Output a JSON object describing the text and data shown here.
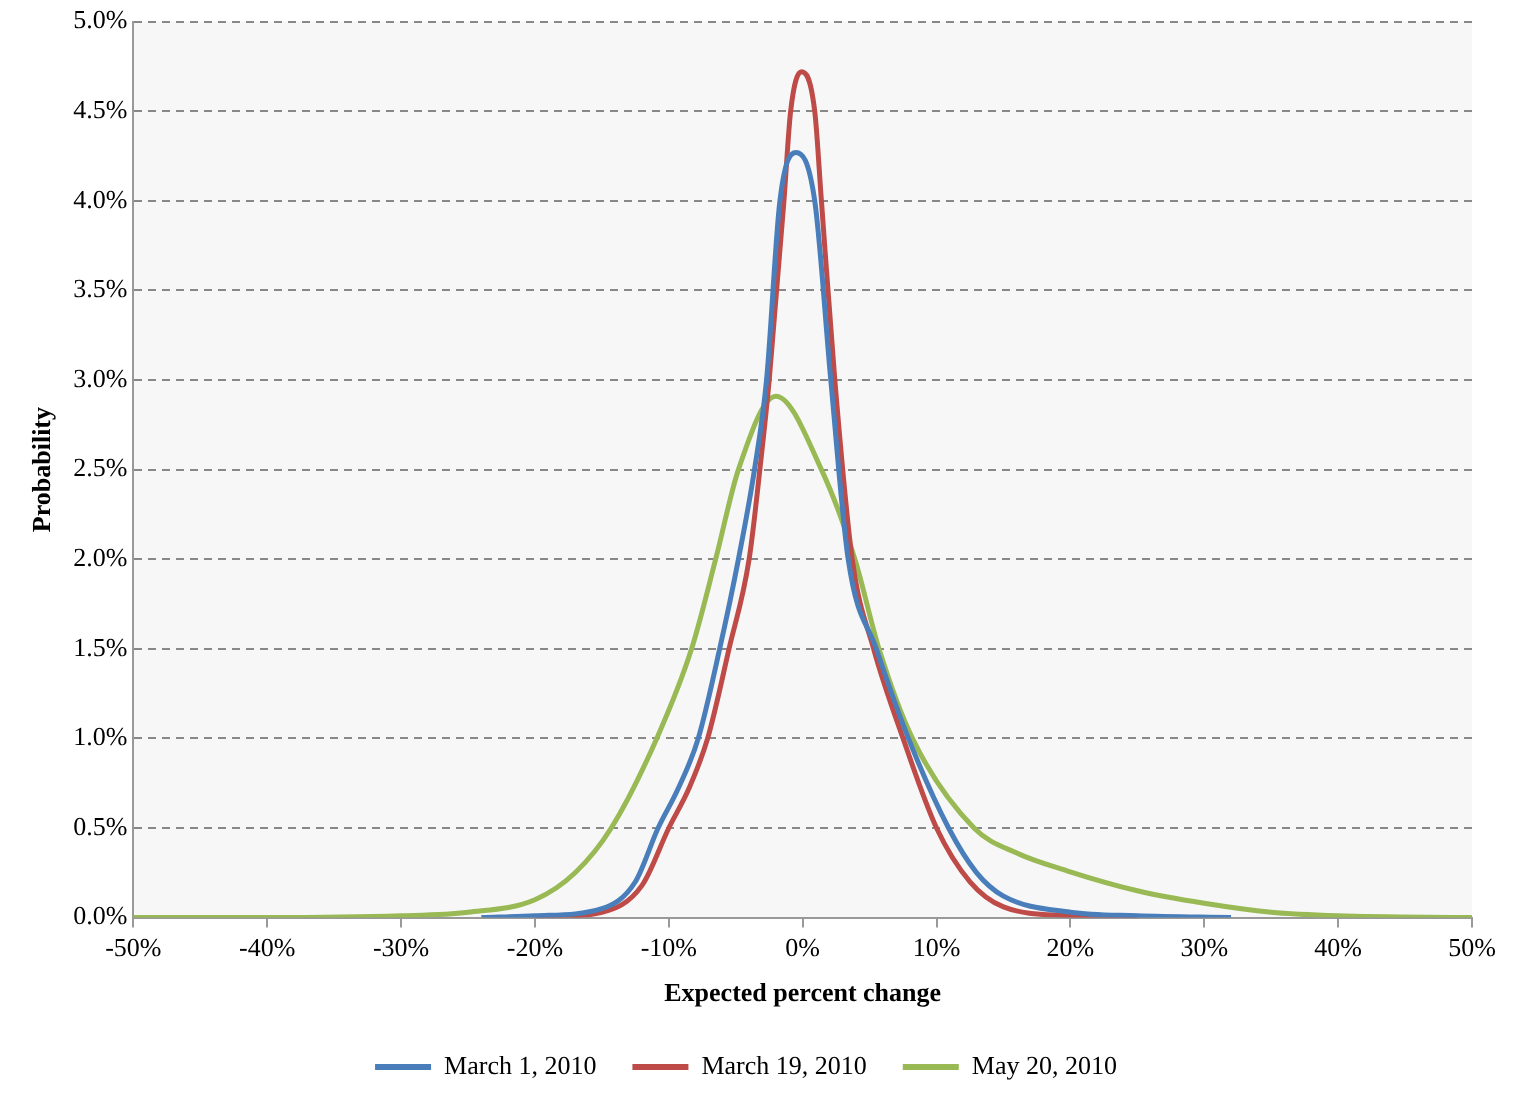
{
  "chart_data": {
    "type": "line",
    "xlabel": "Expected percent change",
    "ylabel": "Probability",
    "xlim": [
      -50,
      50
    ],
    "ylim": [
      0,
      5
    ],
    "xticks": [
      {
        "value": -50,
        "label": "-50%"
      },
      {
        "value": -40,
        "label": "-40%"
      },
      {
        "value": -30,
        "label": "-30%"
      },
      {
        "value": -20,
        "label": "-20%"
      },
      {
        "value": -10,
        "label": "-10%"
      },
      {
        "value": 0,
        "label": "0%"
      },
      {
        "value": 10,
        "label": "10%"
      },
      {
        "value": 20,
        "label": "20%"
      },
      {
        "value": 30,
        "label": "30%"
      },
      {
        "value": 40,
        "label": "40%"
      },
      {
        "value": 50,
        "label": "50%"
      }
    ],
    "yticks": [
      {
        "value": 0,
        "label": "0.0%"
      },
      {
        "value": 0.5,
        "label": "0.5%"
      },
      {
        "value": 1,
        "label": "1.0%"
      },
      {
        "value": 1.5,
        "label": "1.5%"
      },
      {
        "value": 2,
        "label": "2.0%"
      },
      {
        "value": 2.5,
        "label": "2.5%"
      },
      {
        "value": 3,
        "label": "3.0%"
      },
      {
        "value": 3.5,
        "label": "3.5%"
      },
      {
        "value": 4,
        "label": "4.0%"
      },
      {
        "value": 4.5,
        "label": "4.5%"
      },
      {
        "value": 5,
        "label": "5.0%"
      }
    ],
    "grid": "y",
    "legend": "bottom",
    "marker": "none",
    "line_style": "solid",
    "series": [
      {
        "name": "March 1, 2010",
        "color": "#4a7ebb",
        "x": [
          -24,
          -20,
          -15,
          -12.5,
          -10.8,
          -9.3,
          -7.8,
          -6.2,
          -4.8,
          -3.6,
          -2.7,
          -1.7,
          -0.5,
          0.9,
          2.1,
          3.4,
          5.5,
          7.9,
          10.9,
          13,
          15,
          20,
          25,
          32
        ],
        "values": [
          0,
          0.01,
          0.05,
          0.2,
          0.5,
          0.72,
          1,
          1.5,
          2,
          2.5,
          3,
          4,
          4.27,
          4,
          3,
          2,
          1.5,
          1,
          0.5,
          0.25,
          0.12,
          0.03,
          0.01,
          0
        ]
      },
      {
        "name": "March 19, 2010",
        "color": "#be4b48",
        "x": [
          -20,
          -15,
          -12,
          -10,
          -8.5,
          -7.1,
          -5.5,
          -4,
          -3.2,
          -2.5,
          -1.4,
          -0.9,
          -0.1,
          0.9,
          1.4,
          2.4,
          3.7,
          5.3,
          7.5,
          10,
          12.5,
          15,
          20,
          25
        ],
        "values": [
          0,
          0.03,
          0.18,
          0.5,
          0.72,
          1,
          1.5,
          2,
          2.5,
          3,
          4,
          4.5,
          4.72,
          4.5,
          4,
          3,
          2,
          1.5,
          1,
          0.5,
          0.2,
          0.06,
          0.01,
          0
        ]
      },
      {
        "name": "May 20, 2010",
        "color": "#98b954",
        "x": [
          -50,
          -40,
          -30,
          -25,
          -20,
          -17,
          -14.3,
          -10.9,
          -8.3,
          -6.5,
          -4.8,
          -2,
          1.4,
          3.9,
          5.7,
          8.2,
          12.8,
          16,
          19.8,
          25,
          30,
          35,
          40,
          50
        ],
        "values": [
          0,
          0,
          0.01,
          0.03,
          0.1,
          0.25,
          0.5,
          1,
          1.5,
          2,
          2.5,
          2.91,
          2.5,
          2,
          1.5,
          1,
          0.5,
          0.36,
          0.26,
          0.15,
          0.08,
          0.03,
          0.01,
          0
        ]
      }
    ]
  }
}
